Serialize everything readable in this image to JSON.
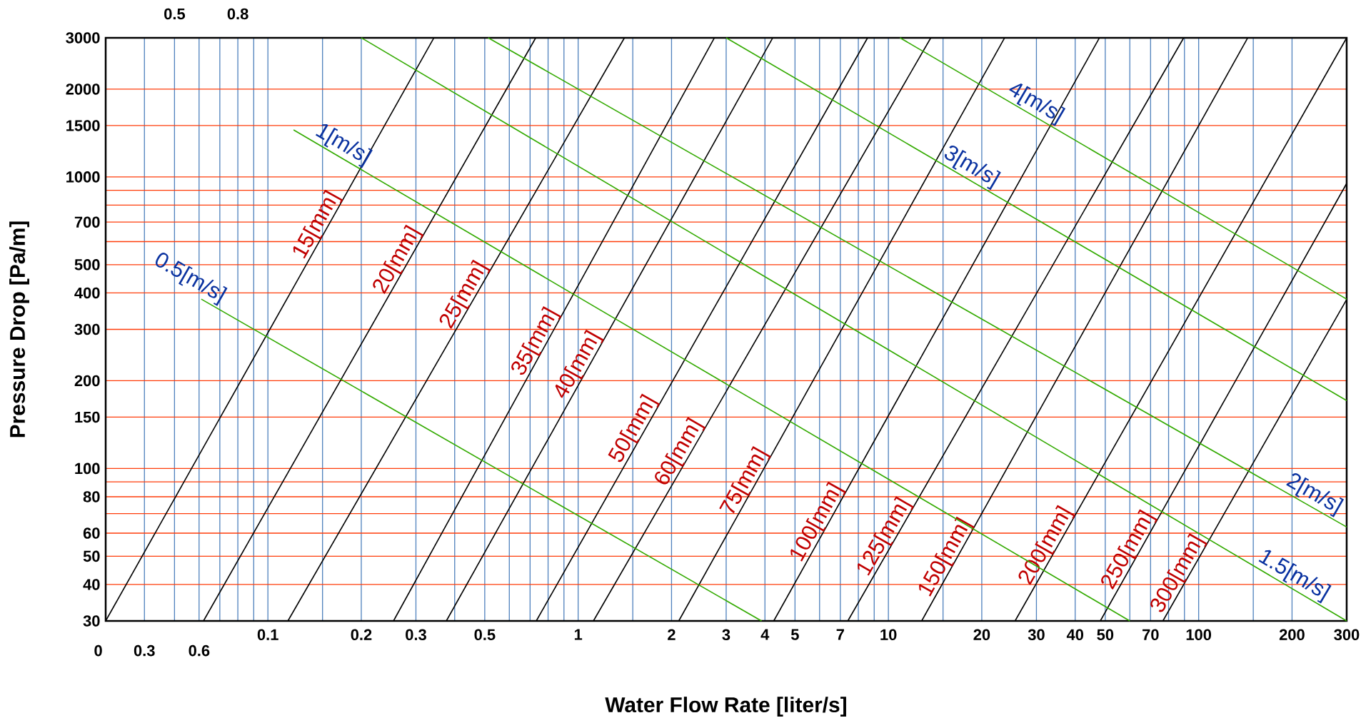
{
  "chart_data": {
    "type": "line",
    "xlabel": "Water Flow Rate [liter/s]",
    "ylabel": "Pressure Drop [Pa/m]",
    "log": "xy",
    "grid": true,
    "marker": "none",
    "line_style": "solid",
    "xlim": [
      0.03,
      300
    ],
    "ylim": [
      30,
      3000
    ],
    "annotations": [
      "0",
      "0.3",
      "0.6",
      "0.5",
      "0.8"
    ],
    "xticks": [
      {
        "value": 0.03,
        "label": null
      },
      {
        "value": 0.04,
        "label": null
      },
      {
        "value": 0.05,
        "label": null
      },
      {
        "value": 0.06,
        "label": null
      },
      {
        "value": 0.07,
        "label": null
      },
      {
        "value": 0.08,
        "label": null
      },
      {
        "value": 0.09,
        "label": null
      },
      0.1,
      {
        "value": 0.15,
        "label": null
      },
      0.2,
      0.3,
      {
        "value": 0.4,
        "label": null
      },
      0.5,
      {
        "value": 0.6,
        "label": null
      },
      {
        "value": 0.7,
        "label": null
      },
      {
        "value": 0.8,
        "label": null
      },
      {
        "value": 0.9,
        "label": null
      },
      1,
      {
        "value": 1.5,
        "label": null
      },
      2,
      3,
      4,
      5,
      {
        "value": 6,
        "label": null
      },
      7,
      {
        "value": 8,
        "label": null
      },
      {
        "value": 9,
        "label": null
      },
      10,
      {
        "value": 15,
        "label": null
      },
      20,
      30,
      40,
      50,
      {
        "value": 60,
        "label": null
      },
      70,
      {
        "value": 80,
        "label": null
      },
      {
        "value": 90,
        "label": null
      },
      100,
      {
        "value": 150,
        "label": null
      },
      200,
      300
    ],
    "yticks": [
      30,
      40,
      50,
      60,
      {
        "value": 70,
        "label": null
      },
      80,
      {
        "value": 90,
        "label": null
      },
      100,
      150,
      200,
      300,
      400,
      500,
      {
        "value": 600,
        "label": null
      },
      700,
      {
        "value": 800,
        "label": null
      },
      {
        "value": 900,
        "label": null
      },
      1000,
      1500,
      2000,
      3000
    ],
    "series": [
      {
        "name": "15[mm]",
        "color": "#000000",
        "x": [
          0.03,
          0.343
        ],
        "values": [
          30,
          3000
        ]
      },
      {
        "name": "20[mm]",
        "color": "#000000",
        "x": [
          0.062,
          0.73
        ],
        "values": [
          30,
          3000
        ]
      },
      {
        "name": "25[mm]",
        "color": "#000000",
        "x": [
          0.116,
          1.41
        ],
        "values": [
          30,
          3000
        ]
      },
      {
        "name": "35[mm]",
        "color": "#000000",
        "x": [
          0.254,
          2.75
        ],
        "values": [
          30,
          3000
        ]
      },
      {
        "name": "40[mm]",
        "color": "#000000",
        "x": [
          0.376,
          4.24
        ],
        "values": [
          30,
          3000
        ]
      },
      {
        "name": "50[mm]",
        "color": "#000000",
        "x": [
          0.733,
          8.57
        ],
        "values": [
          30,
          3000
        ]
      },
      {
        "name": "60[mm]",
        "color": "#000000",
        "x": [
          1.12,
          13.7
        ],
        "values": [
          30,
          3000
        ]
      },
      {
        "name": "75[mm]",
        "color": "#000000",
        "x": [
          2.11,
          23.7
        ],
        "values": [
          30,
          3000
        ]
      },
      {
        "name": "100[mm]",
        "color": "#000000",
        "x": [
          4.27,
          47.9
        ],
        "values": [
          30,
          3000
        ]
      },
      {
        "name": "125[mm]",
        "color": "#000000",
        "x": [
          7.4,
          89.5
        ],
        "values": [
          30,
          3000
        ]
      },
      {
        "name": "150[mm]",
        "color": "#000000",
        "x": [
          12.8,
          144
        ],
        "values": [
          30,
          3000
        ]
      },
      {
        "name": "200[mm]",
        "color": "#000000",
        "x": [
          25.6,
          300
        ],
        "values": [
          30,
          3000
        ]
      },
      {
        "name": "250[mm]",
        "color": "#000000",
        "x": [
          48.2,
          300
        ],
        "values": [
          30,
          950
        ]
      },
      {
        "name": "300[mm]",
        "color": "#000000",
        "x": [
          76.7,
          300
        ],
        "values": [
          30,
          380
        ]
      },
      {
        "name": "0.5[m/s]",
        "color": "#33aa00",
        "x": [
          0.061,
          3.9
        ],
        "values": [
          381,
          30
        ]
      },
      {
        "name": "1[m/s]",
        "color": "#33aa00",
        "x": [
          0.121,
          60
        ],
        "values": [
          1450,
          30
        ]
      },
      {
        "name": "1.5[m/s]",
        "color": "#33aa00",
        "x": [
          0.2,
          300
        ],
        "values": [
          3000,
          30
        ]
      },
      {
        "name": "2[m/s]",
        "color": "#33aa00",
        "x": [
          0.513,
          300
        ],
        "values": [
          3000,
          63
        ]
      },
      {
        "name": "3[m/s]",
        "color": "#33aa00",
        "x": [
          3,
          300
        ],
        "values": [
          3000,
          171
        ]
      },
      {
        "name": "4[m/s]",
        "color": "#33aa00",
        "x": [
          10.9,
          300
        ],
        "values": [
          3000,
          381
        ]
      }
    ]
  }
}
